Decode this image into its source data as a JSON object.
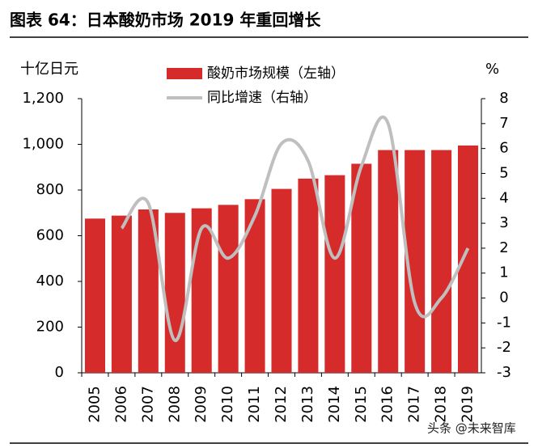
{
  "chart_data": {
    "type": "bar",
    "title": "图表 64：日本酸奶市场 2019 年重回增长",
    "y_label": "十亿日元",
    "y2_label": "%",
    "categories": [
      "2005",
      "2006",
      "2007",
      "2008",
      "2009",
      "2010",
      "2011",
      "2012",
      "2013",
      "2014",
      "2015",
      "2016",
      "2017",
      "2018",
      "2019"
    ],
    "series": [
      {
        "name": "酸奶市场规模（左轴）",
        "type": "bar",
        "color": "#d52b2b",
        "values": [
          675,
          688,
          715,
          700,
          720,
          735,
          760,
          805,
          850,
          865,
          915,
          975,
          975,
          975,
          995
        ]
      },
      {
        "name": "同比增速（右轴）",
        "type": "line",
        "color": "#bfbfbf",
        "axis": "y2",
        "values": [
          null,
          2.8,
          3.8,
          -1.7,
          2.8,
          1.6,
          3.3,
          6.2,
          5.5,
          1.6,
          5.3,
          7.0,
          -0.2,
          0.0,
          2.0
        ]
      }
    ],
    "ylim": [
      0,
      1200
    ],
    "yticks": [
      0,
      200,
      400,
      600,
      800,
      {
        "value": 1000,
        "label": "1,000"
      },
      {
        "value": 1200,
        "label": "1,200"
      }
    ],
    "y2lim": [
      -3,
      8
    ],
    "y2ticks": [
      -3,
      -2,
      -1,
      0,
      1,
      2,
      3,
      4,
      5,
      6,
      7,
      8
    ]
  },
  "watermark": "头条 @未来智库"
}
